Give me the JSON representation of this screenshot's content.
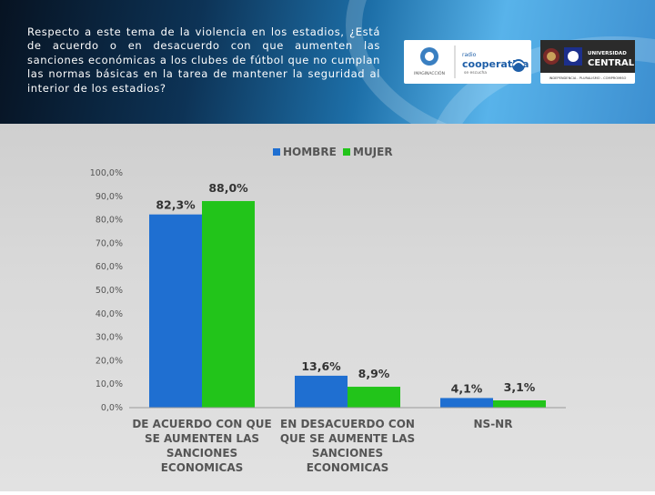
{
  "question": "Respecto a este tema de la violencia en los estadios, ¿Está de acuerdo o en desacuerdo con que aumenten las sanciones económicas a los clubes de fútbol que no cumplan las normas básicas en la tarea de mantener la seguridad al interior de los estadios?",
  "logos": {
    "first": {
      "caption": "IMAGINACCIÓN"
    },
    "second": {
      "name": "cooperativa",
      "prefix": "radio",
      "tagline": "se escucha"
    },
    "third": {
      "line1": "UNIVERSIDAD",
      "line2": "CENTRAL",
      "motto": "INDEPENDENCIA - PLURALISMO - COMPROMISO"
    }
  },
  "colors": {
    "hombre": "#1f6fd1",
    "mujer": "#22c41a",
    "header_dark": "#071322",
    "header_light": "#58b3ea"
  },
  "chart_data": {
    "type": "bar",
    "categories": [
      "DE ACUERDO CON QUE SE AUMENTEN LAS SANCIONES ECONOMICAS",
      "EN DESACUERDO CON QUE SE AUMENTE LAS SANCIONES ECONOMICAS",
      "NS-NR"
    ],
    "category_lines": [
      [
        "DE ACUERDO CON QUE",
        "SE AUMENTEN LAS",
        "SANCIONES",
        "ECONOMICAS"
      ],
      [
        "EN DESACUERDO CON",
        "QUE SE AUMENTE LAS",
        "SANCIONES",
        "ECONOMICAS"
      ],
      [
        "NS-NR"
      ]
    ],
    "series": [
      {
        "name": "HOMBRE",
        "values": [
          82.3,
          13.6,
          4.1
        ],
        "labels": [
          "82,3%",
          "13,6%",
          "4,1%"
        ]
      },
      {
        "name": "MUJER",
        "values": [
          88.0,
          8.9,
          3.1
        ],
        "labels": [
          "88,0%",
          "8,9%",
          "3,1%"
        ]
      }
    ],
    "ylim": [
      0,
      100
    ],
    "yticks": [
      "0,0%",
      "10,0%",
      "20,0%",
      "30,0%",
      "40,0%",
      "50,0%",
      "60,0%",
      "70,0%",
      "80,0%",
      "90,0%",
      "100,0%"
    ],
    "legend_position": "top-center",
    "grid": false
  }
}
